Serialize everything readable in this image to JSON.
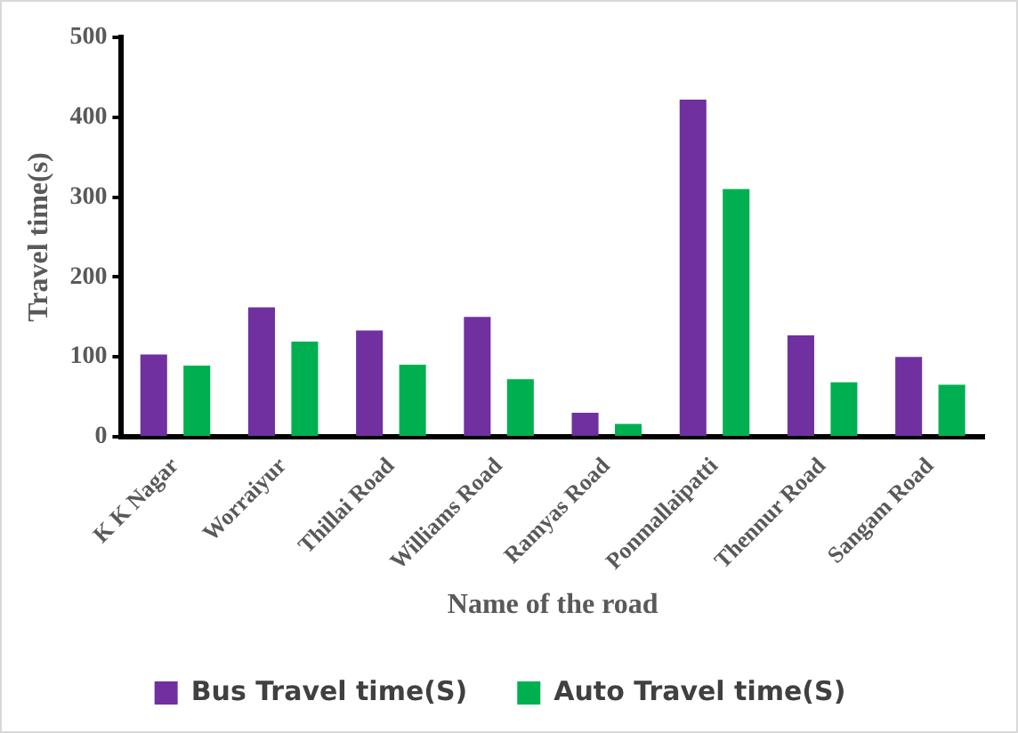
{
  "chart_data": {
    "type": "bar",
    "xlabel": "Name of the road",
    "ylabel": "Travel time(s)",
    "categories": [
      "K K Nagar",
      "Worraiyur",
      "Thillai Road",
      "Williams Road",
      "Ramyas Road",
      "Ponmallaipatti",
      "Thennur Road",
      "Sangam Road"
    ],
    "series": [
      {
        "name": "Bus Travel time(S)",
        "color": "#7030a0",
        "values": [
          103,
          162,
          133,
          150,
          30,
          422,
          127,
          100
        ]
      },
      {
        "name": "Auto Travel time(S)",
        "color": "#00b050",
        "values": [
          89,
          119,
          90,
          72,
          16,
          310,
          68,
          65
        ]
      }
    ],
    "ylim": [
      0,
      500
    ],
    "yticks": [
      0,
      100,
      200,
      300,
      400,
      500
    ],
    "grid": false,
    "legend": "bottom"
  }
}
